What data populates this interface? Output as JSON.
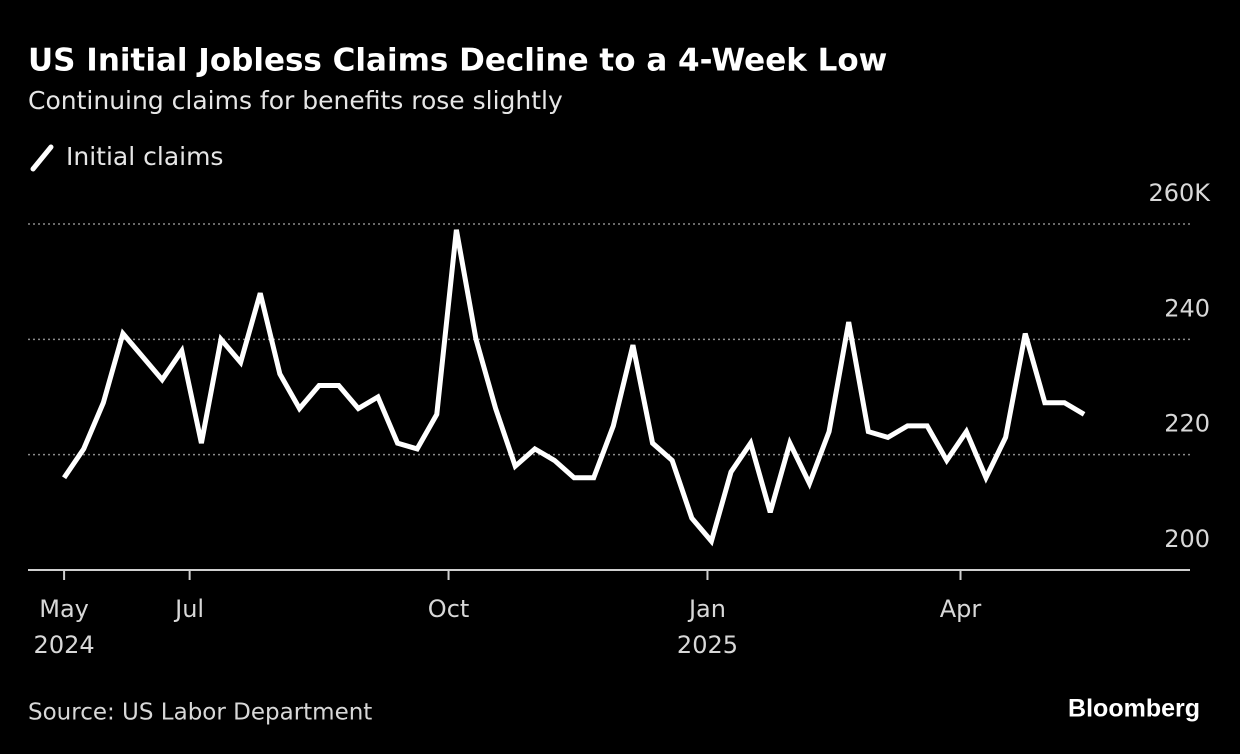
{
  "chart_data": {
    "type": "line",
    "title": "US Initial Jobless Claims Decline to a 4-Week Low",
    "subtitle": "Continuing claims for benefits rose slightly",
    "source": "Source: US Labor Department",
    "brand": "Bloomberg",
    "x": [
      0,
      1,
      2,
      3,
      4,
      5,
      6,
      7,
      8,
      9,
      10,
      11,
      12,
      13,
      14,
      15,
      16,
      17,
      18,
      19,
      20,
      21,
      22,
      23,
      24,
      25,
      26,
      27,
      28,
      29,
      30,
      31,
      32,
      33,
      34,
      35,
      36,
      37,
      38,
      39,
      40,
      41,
      42,
      43,
      44,
      45,
      46,
      47,
      48,
      49,
      50,
      51,
      52
    ],
    "series": [
      {
        "name": "Initial claims",
        "color": "#ffffff",
        "values": [
          216,
          221,
          229,
          241,
          237,
          233,
          238,
          222,
          240,
          236,
          248,
          234,
          228,
          232,
          232,
          228,
          230,
          222,
          221,
          227,
          259,
          240,
          228,
          218,
          221,
          219,
          216,
          216,
          225,
          239,
          222,
          219,
          209,
          205,
          217,
          222,
          210,
          222,
          215,
          224,
          243,
          224,
          223,
          225,
          225,
          219,
          224,
          216,
          223,
          241,
          229,
          229,
          227
        ]
      }
    ],
    "xlim": [
      -1.84,
      57.4
    ],
    "xticks": [
      {
        "value": 0,
        "label": "May\n2024"
      },
      {
        "value": 6.4,
        "label": "Jul"
      },
      {
        "value": 19.6,
        "label": "Oct"
      },
      {
        "value": 32.8,
        "label": "Jan\n2025"
      },
      {
        "value": 45.7,
        "label": "Apr"
      }
    ],
    "ylim": [
      200,
      260
    ],
    "yticks": [
      200,
      220,
      240,
      {
        "value": 260,
        "label": "260K"
      }
    ],
    "grid": true
  }
}
